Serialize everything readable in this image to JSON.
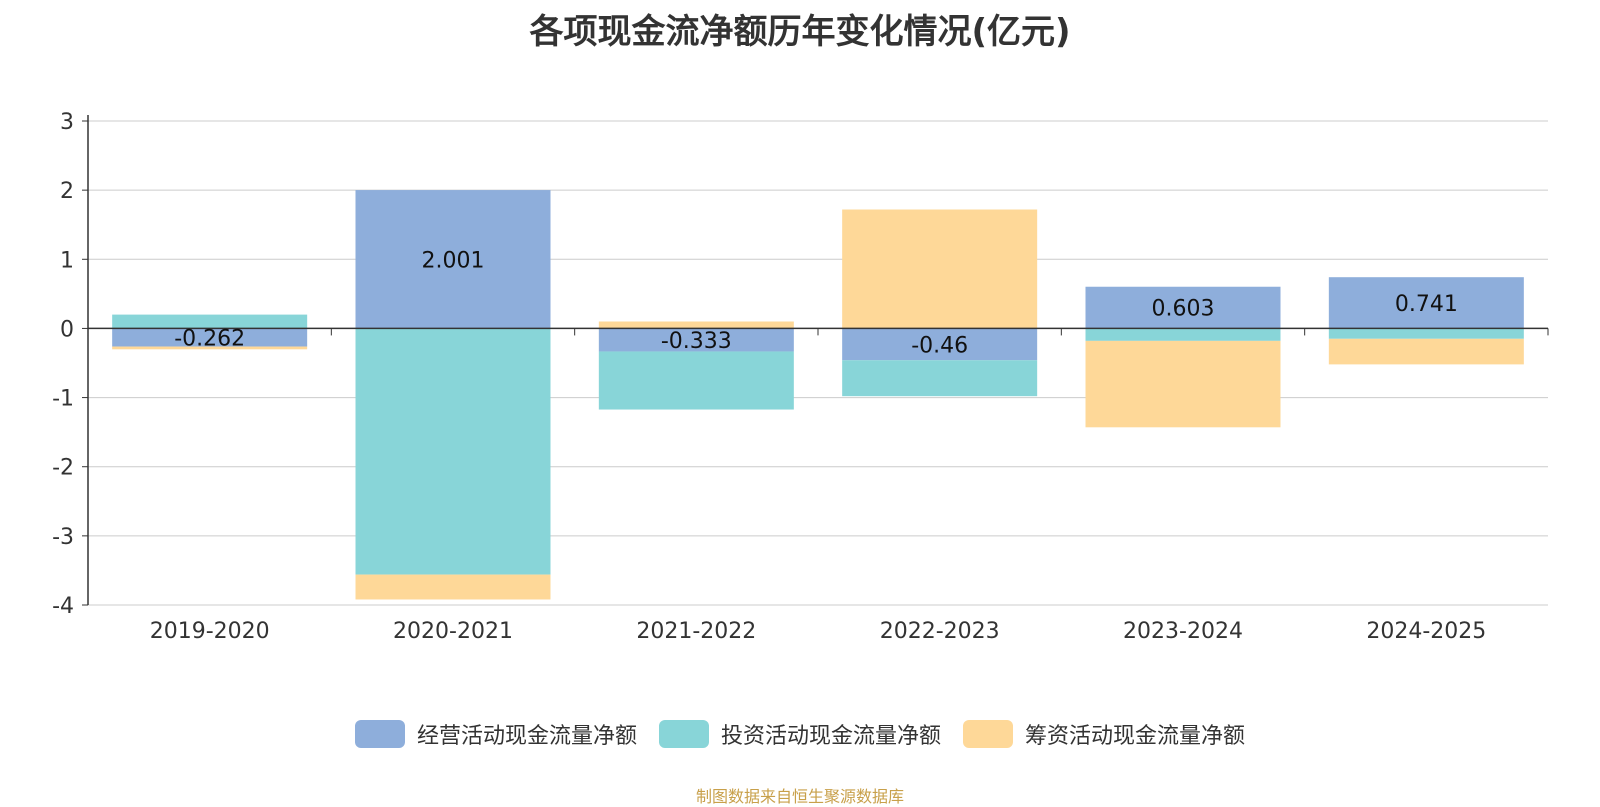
{
  "title": "各项现金流净额历年变化情况(亿元)",
  "chart_data": {
    "type": "bar",
    "stacked": true,
    "categories": [
      "2019-2020",
      "2020-2021",
      "2021-2022",
      "2022-2023",
      "2023-2024",
      "2024-2025"
    ],
    "series": [
      {
        "name": "经营活动现金流量净额",
        "color": "#8eaedb",
        "values": [
          -0.262,
          2.001,
          -0.333,
          -0.46,
          0.603,
          0.741
        ],
        "labels": [
          "-0.262",
          "2.001",
          "-0.333",
          "-0.46",
          "0.603",
          "0.741"
        ]
      },
      {
        "name": "投资活动现金流量净额",
        "color": "#88d5d8",
        "values": [
          0.2,
          -3.56,
          -0.84,
          -0.52,
          -0.18,
          -0.15
        ]
      },
      {
        "name": "筹资活动现金流量净额",
        "color": "#fed898",
        "values": [
          -0.04,
          -0.36,
          0.1,
          1.72,
          -1.25,
          -0.37
        ]
      }
    ],
    "ylim": [
      -4,
      3
    ],
    "yticks": [
      3,
      2,
      1,
      0,
      -1,
      -2,
      -3,
      -4
    ],
    "grid": true,
    "legend": "bottom"
  },
  "source": "制图数据来自恒生聚源数据库"
}
